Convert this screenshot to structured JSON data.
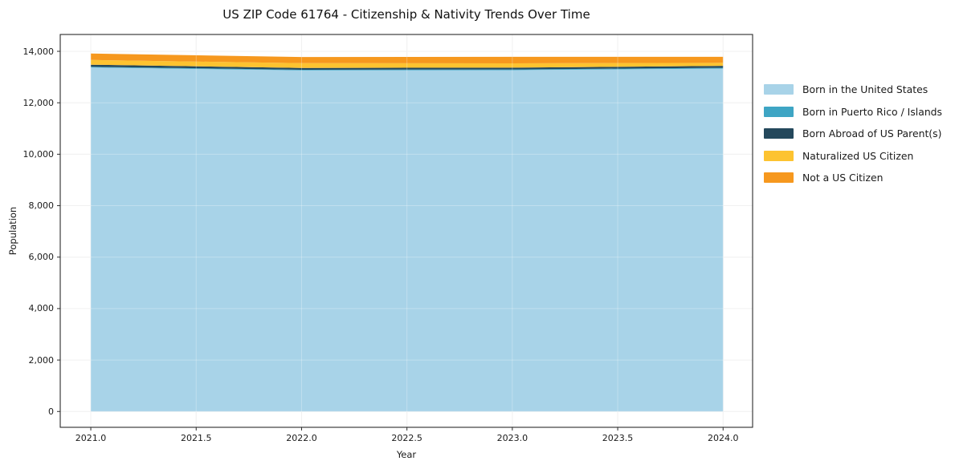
{
  "title": "US ZIP Code 61764 - Citizenship & Nativity Trends Over Time",
  "chart_data": {
    "type": "area",
    "stacked": true,
    "title": "US ZIP Code 61764 - Citizenship & Nativity Trends Over Time",
    "xlabel": "Year",
    "ylabel": "Population",
    "x": [
      2021,
      2022,
      2023,
      2024
    ],
    "series": [
      {
        "name": "Born in the United States",
        "color": "#A8D3E8",
        "values": [
          13370,
          13260,
          13270,
          13330
        ]
      },
      {
        "name": "Born in Puerto Rico / Islands",
        "color": "#3EA5C4",
        "values": [
          30,
          25,
          25,
          30
        ]
      },
      {
        "name": "Born Abroad of US Parent(s)",
        "color": "#24485C",
        "values": [
          80,
          70,
          70,
          75
        ]
      },
      {
        "name": "Naturalized US Citizen",
        "color": "#FDC330",
        "values": [
          185,
          185,
          170,
          120
        ]
      },
      {
        "name": "Not a US Citizen",
        "color": "#F6981E",
        "values": [
          250,
          240,
          250,
          230
        ]
      }
    ],
    "xlim": [
      2020.855,
      2024.14
    ],
    "ylim": [
      -615,
      14655
    ],
    "xticks": {
      "values": [
        2021.0,
        2021.5,
        2022.0,
        2022.5,
        2023.0,
        2023.5,
        2024.0
      ],
      "labels": [
        "2021.0",
        "2021.5",
        "2022.0",
        "2022.5",
        "2023.0",
        "2023.5",
        "2024.0"
      ]
    },
    "yticks": {
      "values": [
        0,
        2000,
        4000,
        6000,
        8000,
        10000,
        12000,
        14000
      ],
      "labels": [
        "0",
        "2,000",
        "4,000",
        "6,000",
        "8,000",
        "10,000",
        "12,000",
        "14,000"
      ]
    },
    "grid": true,
    "legend_position": "right",
    "colors": {
      "grid": "#ececec",
      "grid_over_area": "rgba(255,255,255,0.28)",
      "spine": "#2b2b2b",
      "background": "#ffffff"
    }
  }
}
